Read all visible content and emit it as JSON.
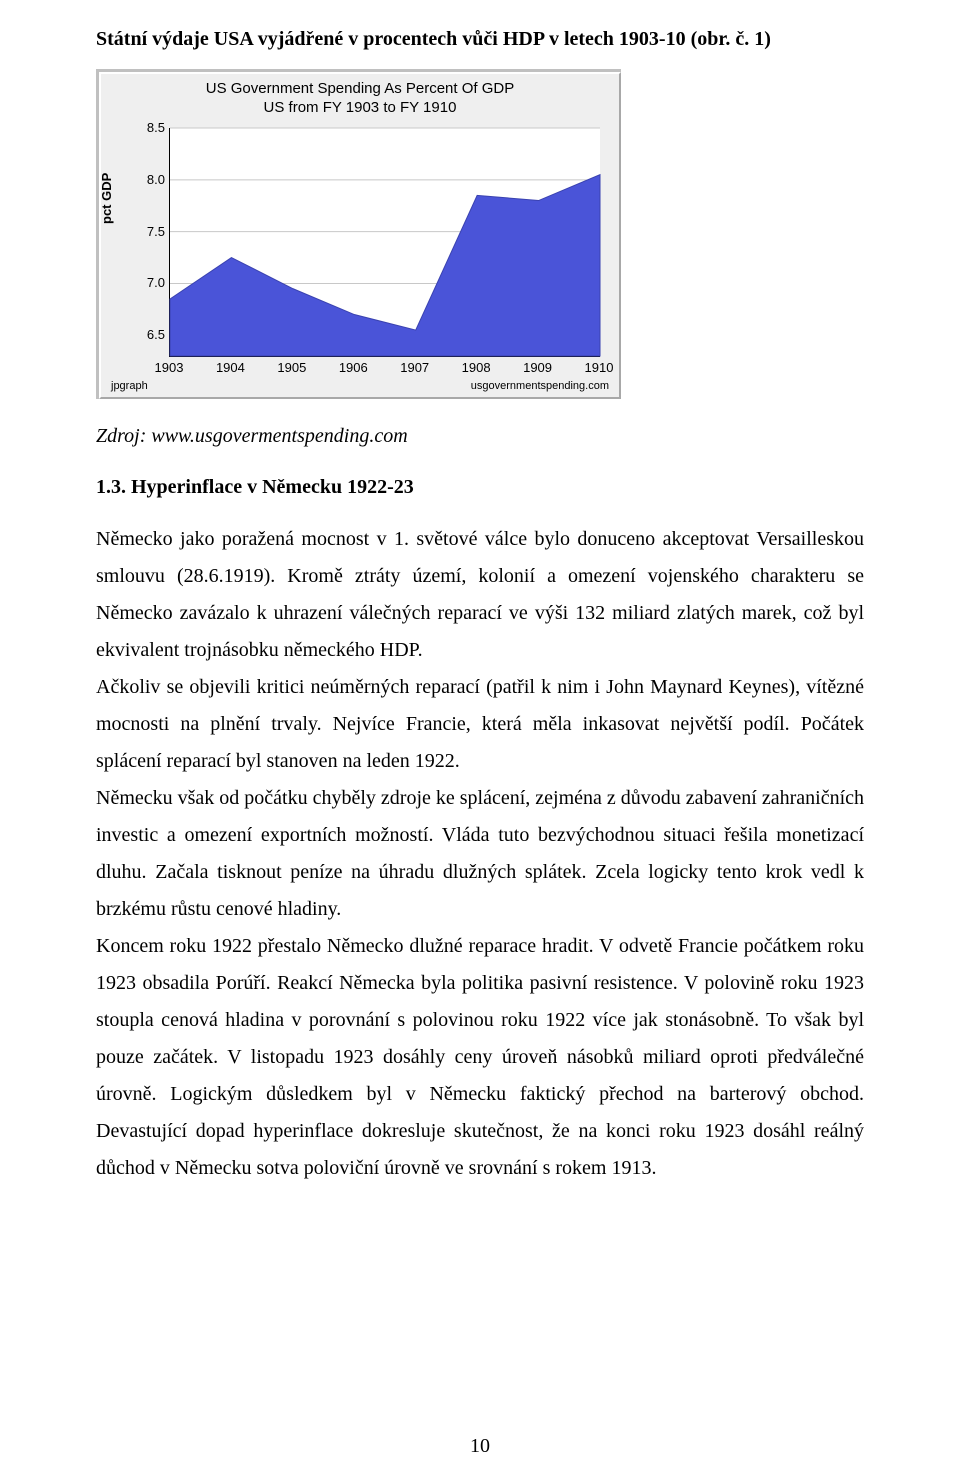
{
  "figure_caption": "Státní výdaje USA vyjádřené v procentech vůči HDP v letech 1903-10 (obr. č. 1)",
  "chart": {
    "type": "area",
    "title": "US Government Spending As Percent Of GDP",
    "subtitle": "US from FY 1903 to FY 1910",
    "ylabel": "pct GDP",
    "ylim_min": 6.3,
    "ylim_max": 8.5,
    "ytick_labels": [
      "6.5",
      "7.0",
      "7.5",
      "8.0",
      "8.5"
    ],
    "ytick_values": [
      6.5,
      7.0,
      7.5,
      8.0,
      8.5
    ],
    "x_categories": [
      "1903",
      "1904",
      "1905",
      "1906",
      "1907",
      "1908",
      "1909",
      "1910"
    ],
    "values": [
      6.85,
      7.25,
      6.95,
      6.7,
      6.55,
      7.85,
      7.8,
      8.05
    ],
    "area_fill": "#4a54d8",
    "area_stroke": "#3a42b0",
    "panel_bg": "#efefef",
    "plot_bg": "#ffffff",
    "grid_color": "#c8c8c8",
    "title_fontsize": 15,
    "tick_fontsize": 13,
    "ylabel_fontsize": 13,
    "bottom_left_label": "jpgraph",
    "bottom_right_label": "usgovernmentspending.com"
  },
  "source_label": "Zdroj: www.usgovermentspending.com",
  "section_heading": "1.3. Hyperinflace v Německu 1922-23",
  "paragraphs": [
    "Německo jako poražená mocnost v 1. světové válce bylo donuceno akceptovat Versailleskou smlouvu (28.6.1919). Kromě ztráty území, kolonií a omezení vojenského charakteru se Německo zavázalo k uhrazení válečných reparací ve výši 132 miliard zlatých marek, což byl ekvivalent trojnásobku německého HDP.",
    "Ačkoliv se objevili kritici neúměrných reparací (patřil k nim i John Maynard Keynes), vítězné mocnosti na plnění trvaly. Nejvíce Francie, která měla inkasovat největší podíl. Počátek splácení reparací byl stanoven na leden 1922.",
    "Německu však od počátku chyběly zdroje ke splácení, zejména z důvodu zabavení zahraničních investic a omezení exportních možností. Vláda tuto bezvýchodnou situaci řešila monetizací dluhu. Začala tisknout peníze na úhradu dlužných splátek. Zcela logicky tento krok vedl k brzkému růstu cenové hladiny.",
    "Koncem roku 1922 přestalo Německo dlužné reparace hradit. V odvetě Francie počátkem roku 1923 obsadila Porúří. Reakcí Německa byla politika pasivní resistence. V polovině roku 1923 stoupla cenová hladina v porovnání s polovinou roku 1922 více jak stonásobně. To však byl pouze začátek. V listopadu 1923 dosáhly ceny úroveň násobků miliard oproti předválečné úrovně. Logickým důsledkem byl v Německu faktický přechod na barterový obchod. Devastující dopad hyperinflace dokresluje skutečnost, že na konci roku 1923 dosáhl reálný důchod v Německu sotva poloviční úrovně ve srovnání s rokem 1913."
  ],
  "page_number": "10"
}
